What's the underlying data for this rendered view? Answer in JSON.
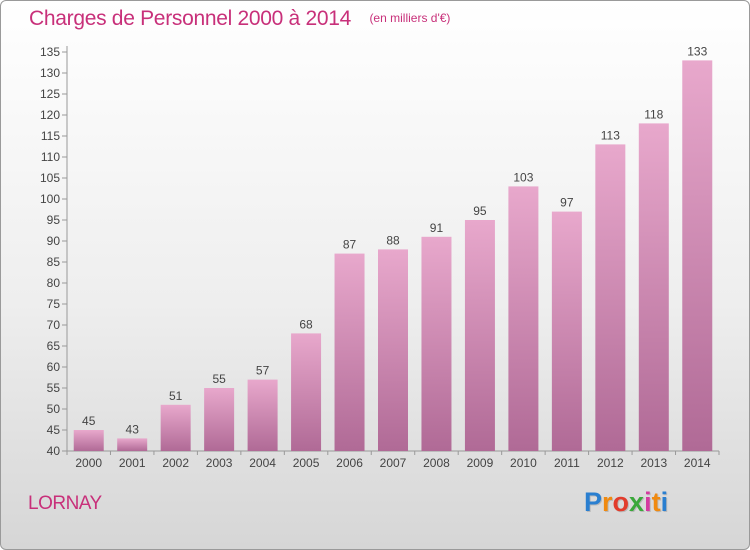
{
  "header": {
    "title": "Charges de Personnel 2000 à 2014",
    "subtitle": "(en milliers d'€)"
  },
  "footer": {
    "city": "LORNAY",
    "logo_letters": [
      "P",
      "r",
      "o",
      "x",
      "i",
      "t",
      "i"
    ],
    "logo_colors": [
      "#2a7fd0",
      "#f08a10",
      "#e23c2c",
      "#3aa83a",
      "#d43aa0",
      "#f08a10",
      "#2a7fd0"
    ]
  },
  "colors": {
    "bar_top": "#e8a8cc",
    "bar_bottom": "#b06a96",
    "text_accent": "#c8307a",
    "axis": "#999999"
  },
  "chart_data": {
    "type": "bar",
    "categories": [
      "2000",
      "2001",
      "2002",
      "2003",
      "2004",
      "2005",
      "2006",
      "2007",
      "2008",
      "2009",
      "2010",
      "2011",
      "2012",
      "2013",
      "2014"
    ],
    "values": [
      45,
      43,
      51,
      55,
      57,
      68,
      87,
      88,
      91,
      95,
      103,
      97,
      113,
      118,
      133
    ],
    "ylim": [
      40,
      135
    ],
    "yticks": [
      40,
      45,
      50,
      55,
      60,
      65,
      70,
      75,
      80,
      85,
      90,
      95,
      100,
      105,
      110,
      115,
      120,
      125,
      130,
      135
    ],
    "grid": false,
    "data_labels": true
  }
}
